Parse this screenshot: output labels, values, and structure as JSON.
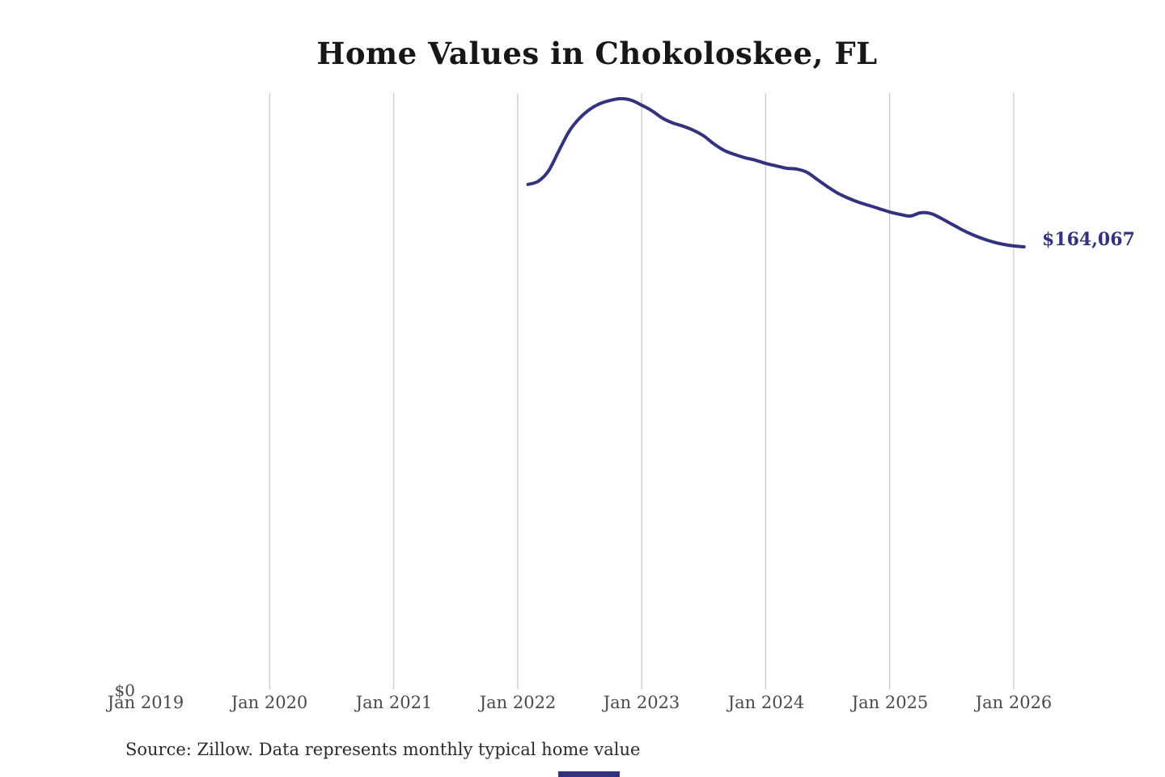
{
  "page": {
    "title": "Home Values in Chokoloskee, FL"
  },
  "footer": {
    "source": "Source: Zillow. Data represents monthly typical home value"
  },
  "colors": {
    "line": "#32327f",
    "value_label": "#32327f",
    "gridline": "#cccccc",
    "axis_text": "#4a4a4a",
    "title_text": "#171717",
    "source_text": "#2b2b2b"
  },
  "chart_data": {
    "type": "line",
    "title": "Home Values in Chokoloskee, FL",
    "xlabel": "",
    "ylabel": "",
    "grid": "vertical-gridlines-only",
    "legend": "none",
    "x_tick_labels": [
      "Jan 2019",
      "Jan 2020",
      "Jan 2021",
      "Jan 2022",
      "Jan 2023",
      "Jan 2024",
      "Jan 2025",
      "Jan 2026"
    ],
    "gridline_years": [
      2020,
      2021,
      2022,
      2023,
      2024,
      2025,
      2026
    ],
    "y_zero_label": "$0",
    "end_label": "$164,067",
    "end_value": 164067,
    "y_axis_min": 0,
    "series": [
      {
        "name": "Monthly typical home value",
        "dates": [
          "2022-02",
          "2022-03",
          "2022-04",
          "2022-05",
          "2022-06",
          "2022-07",
          "2022-08",
          "2022-09",
          "2022-10",
          "2022-11",
          "2022-12",
          "2023-01",
          "2023-02",
          "2023-03",
          "2023-04",
          "2023-05",
          "2023-06",
          "2023-07",
          "2023-08",
          "2023-09",
          "2023-10",
          "2023-11",
          "2023-12",
          "2024-01",
          "2024-02",
          "2024-03",
          "2024-04",
          "2024-05",
          "2024-06",
          "2024-07",
          "2024-08",
          "2024-09",
          "2024-10",
          "2024-11",
          "2024-12",
          "2025-01",
          "2025-02",
          "2025-03",
          "2025-04",
          "2025-05",
          "2025-06",
          "2025-07",
          "2025-08",
          "2025-09",
          "2025-10",
          "2025-11",
          "2025-12",
          "2026-01",
          "2026-02"
        ],
        "values": [
          187200,
          188400,
          192300,
          199800,
          207000,
          211800,
          215100,
          217200,
          218400,
          219000,
          218400,
          216600,
          214500,
          211800,
          210000,
          208800,
          207300,
          205200,
          202200,
          199800,
          198300,
          197100,
          196200,
          195000,
          194100,
          193200,
          192900,
          191700,
          189000,
          186300,
          183900,
          182100,
          180600,
          179400,
          178200,
          177000,
          176100,
          175500,
          176700,
          176400,
          174600,
          172500,
          170400,
          168600,
          167100,
          165900,
          165000,
          164400,
          164067
        ]
      }
    ]
  }
}
